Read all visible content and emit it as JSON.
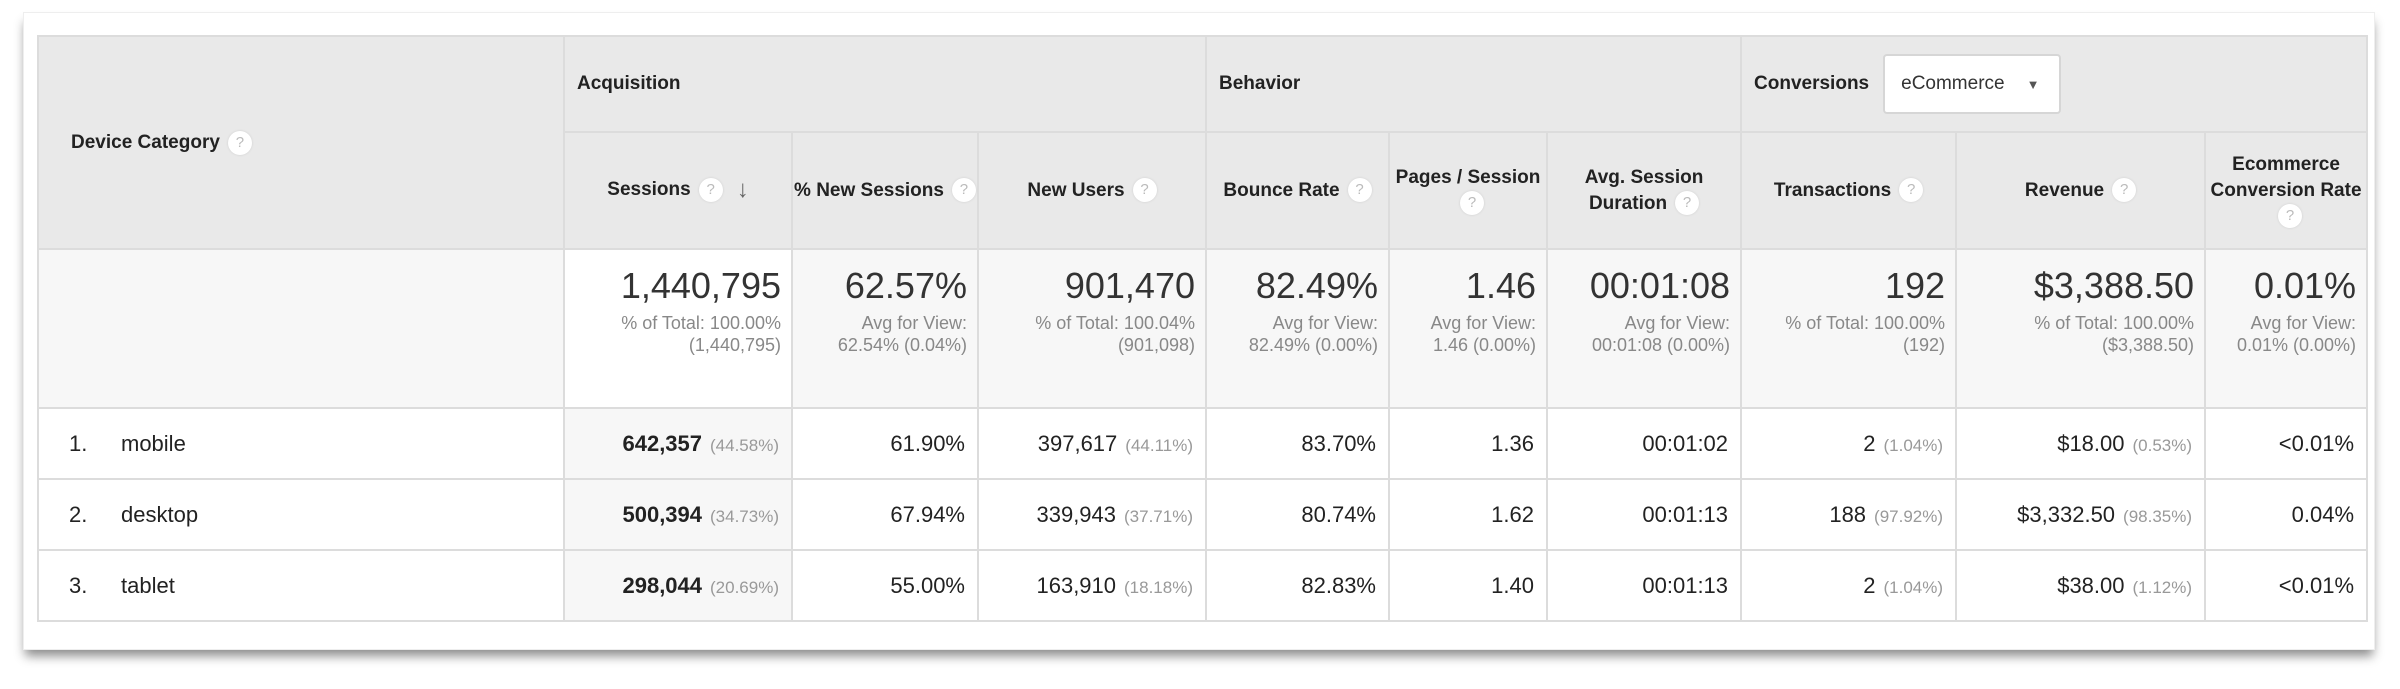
{
  "header": {
    "dimension": "Device Category",
    "groups": {
      "acquisition": "Acquisition",
      "behavior": "Behavior",
      "conversions": "Conversions"
    },
    "conversion_select": "eCommerce",
    "columns": [
      "Sessions",
      "% New Sessions",
      "New Users",
      "Bounce Rate",
      "Pages / Session",
      "Avg. Session Duration",
      "Transactions",
      "Revenue",
      "Ecommerce Conversion Rate"
    ],
    "sorted_column": "Sessions",
    "sort_direction": "descending"
  },
  "totals": [
    {
      "value": "1,440,795",
      "note": "% of Total: 100.00% (1,440,795)"
    },
    {
      "value": "62.57%",
      "note": "Avg for View: 62.54% (0.04%)"
    },
    {
      "value": "901,470",
      "note": "% of Total: 100.04% (901,098)"
    },
    {
      "value": "82.49%",
      "note": "Avg for View: 82.49% (0.00%)"
    },
    {
      "value": "1.46",
      "note": "Avg for View: 1.46 (0.00%)"
    },
    {
      "value": "00:01:08",
      "note": "Avg for View: 00:01:08 (0.00%)"
    },
    {
      "value": "192",
      "note": "% of Total: 100.00% (192)"
    },
    {
      "value": "$3,388.50",
      "note": "% of Total: 100.00% ($3,388.50)"
    },
    {
      "value": "0.01%",
      "note": "Avg for View: 0.01% (0.00%)"
    }
  ],
  "rows": [
    {
      "index": "1.",
      "device": "mobile",
      "sessions": "642,357",
      "sessions_pct": "(44.58%)",
      "new_sessions": "61.90%",
      "new_users": "397,617",
      "new_users_pct": "(44.11%)",
      "bounce": "83.70%",
      "pages": "1.36",
      "duration": "00:01:02",
      "transactions": "2",
      "transactions_pct": "(1.04%)",
      "revenue": "$18.00",
      "revenue_pct": "(0.53%)",
      "conv": "<0.01%"
    },
    {
      "index": "2.",
      "device": "desktop",
      "sessions": "500,394",
      "sessions_pct": "(34.73%)",
      "new_sessions": "67.94%",
      "new_users": "339,943",
      "new_users_pct": "(37.71%)",
      "bounce": "80.74%",
      "pages": "1.62",
      "duration": "00:01:13",
      "transactions": "188",
      "transactions_pct": "(97.92%)",
      "revenue": "$3,332.50",
      "revenue_pct": "(98.35%)",
      "conv": "0.04%"
    },
    {
      "index": "3.",
      "device": "tablet",
      "sessions": "298,044",
      "sessions_pct": "(20.69%)",
      "new_sessions": "55.00%",
      "new_users": "163,910",
      "new_users_pct": "(18.18%)",
      "bounce": "82.83%",
      "pages": "1.40",
      "duration": "00:01:13",
      "transactions": "2",
      "transactions_pct": "(1.04%)",
      "revenue": "$38.00",
      "revenue_pct": "(1.12%)",
      "conv": "<0.01%"
    }
  ],
  "icons": {
    "help": "?",
    "sort": "↓",
    "dropdown": "▼"
  }
}
